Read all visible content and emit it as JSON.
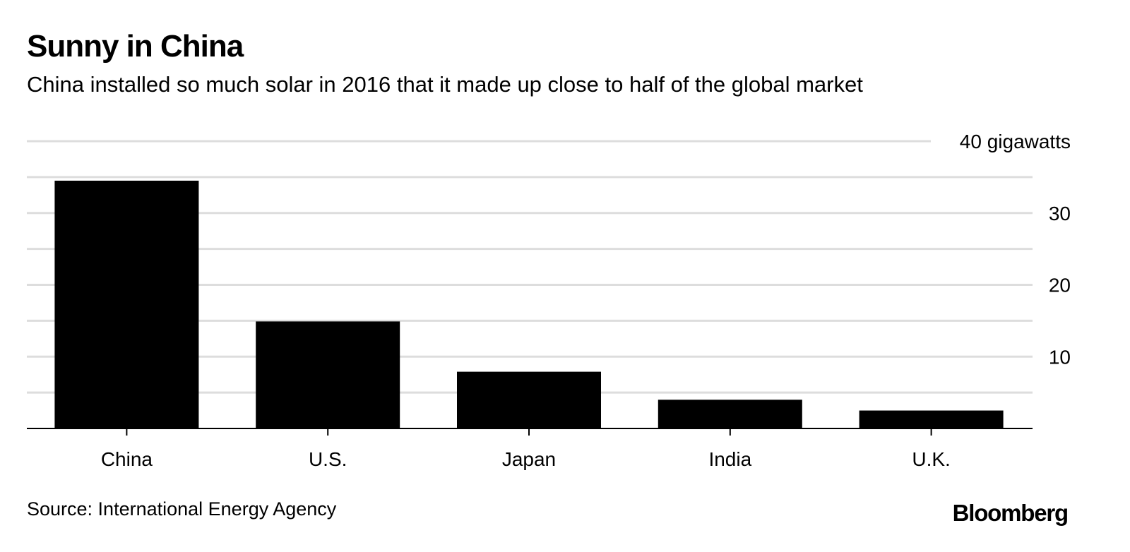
{
  "header": {
    "title": "Sunny in China",
    "subtitle": "China installed so much solar in 2016 that it made up close to half of the global market"
  },
  "footer": {
    "source": "Source: International Energy Agency",
    "logo_text": "Bloomberg"
  },
  "chart_data": {
    "type": "bar",
    "categories": [
      "China",
      "U.S.",
      "Japan",
      "India",
      "U.K."
    ],
    "values": [
      34.5,
      14.9,
      7.9,
      4.0,
      2.5
    ],
    "ylim": [
      0,
      40
    ],
    "yticks": [
      10,
      20,
      30,
      40
    ],
    "ytick_labels": [
      "10",
      "20",
      "30",
      "40 gigawatts"
    ],
    "minor_gridlines_every": 5,
    "y_axis_side": "right",
    "grid": true,
    "bar_color": "#000000",
    "grid_color": "#dddddd"
  }
}
